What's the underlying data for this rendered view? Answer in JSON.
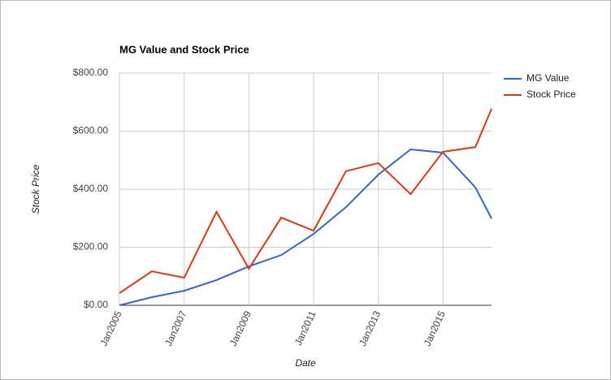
{
  "chart_data": {
    "type": "line",
    "title": "MG Value and Stock Price",
    "x_label": "Date",
    "y_label": "Stock Price",
    "x": [
      "2005-01",
      "2006-01",
      "2007-01",
      "2008-01",
      "2009-01",
      "2010-01",
      "2011-01",
      "2012-01",
      "2013-01",
      "2014-01",
      "2015-01",
      "2016-01",
      "2016-07"
    ],
    "series": [
      {
        "name": "MG Value",
        "color": "#3366cc",
        "values": [
          0,
          28,
          50,
          87,
          134,
          173,
          246,
          338,
          450,
          537,
          526,
          406,
          299
        ]
      },
      {
        "name": "Stock Price",
        "color": "#dc3912",
        "values": [
          42,
          117,
          95,
          322,
          126,
          302,
          257,
          462,
          490,
          383,
          529,
          545,
          677
        ]
      }
    ],
    "xlim": [
      "2005-01",
      "2016-07"
    ],
    "xticks": [
      {
        "value": "2005-01",
        "label": "Jan2005"
      },
      {
        "value": "2007-01",
        "label": "Jan2007"
      },
      {
        "value": "2009-01",
        "label": "Jan2009"
      },
      {
        "value": "2011-01",
        "label": "Jan2011"
      },
      {
        "value": "2013-01",
        "label": "Jan2013"
      },
      {
        "value": "2015-01",
        "label": "Jan2015"
      }
    ],
    "ylim": [
      0,
      800
    ],
    "yticks": [
      {
        "value": 0,
        "label": "$0.00"
      },
      {
        "value": 200,
        "label": "$200.00"
      },
      {
        "value": 400,
        "label": "$400.00"
      },
      {
        "value": 600,
        "label": "$600.00"
      },
      {
        "value": 800,
        "label": "$800.00"
      }
    ],
    "grid": true,
    "legend": "right"
  }
}
